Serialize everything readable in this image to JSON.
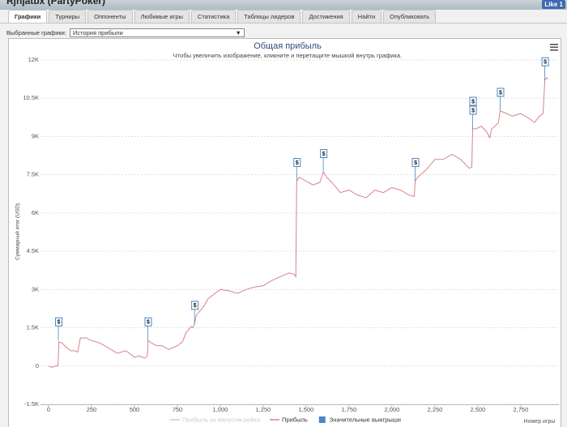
{
  "header": {
    "title": "Rjhjatbx (PartyPoker)",
    "like": "Like 1"
  },
  "tabs": [
    "Графики",
    "Турниры",
    "Оппоненты",
    "Любимые игры",
    "Статистика",
    "Таблицы лидеров",
    "Достижения",
    "Найти",
    "Опубликовать"
  ],
  "selector": {
    "label": "Выбранные графики:",
    "value": "История прибыли",
    "arrow": "▼"
  },
  "chart_data": {
    "type": "line",
    "title": "Общая прибыль",
    "subtitle": "Чтобы увеличить изображение, кликните и перетащите мышкой внутрь графика.",
    "y_label": "Суммарный итог (USD)",
    "x_label": "Номер игры",
    "grid": true,
    "ylim": [
      -1500,
      12000
    ],
    "yticks": [
      {
        "value": -1500,
        "label": "-1.5K"
      },
      0,
      {
        "value": 1500,
        "label": "1.5K"
      },
      {
        "value": 3000,
        "label": "3K"
      },
      {
        "value": 4500,
        "label": "4.5K"
      },
      {
        "value": 6000,
        "label": "6K"
      },
      {
        "value": 7500,
        "label": "7.5K"
      },
      {
        "value": 9000,
        "label": "9K"
      },
      {
        "value": 10500,
        "label": "10.5K"
      },
      {
        "value": 12000,
        "label": "12K"
      }
    ],
    "xlim": [
      -47,
      2925
    ],
    "xticks": [
      0,
      250,
      500,
      750,
      {
        "value": 1000,
        "label": "1,000"
      },
      {
        "value": 1250,
        "label": "1,250"
      },
      {
        "value": 1500,
        "label": "1,500"
      },
      {
        "value": 1750,
        "label": "1,750"
      },
      {
        "value": 2000,
        "label": "2,000"
      },
      {
        "value": 2250,
        "label": "2,250"
      },
      {
        "value": 2500,
        "label": "2,500"
      },
      {
        "value": 2750,
        "label": "2,750"
      }
    ],
    "series": [
      {
        "name": "Прибыль за минусом рейка",
        "color": "#cccccc",
        "visible": false
      },
      {
        "name": "Прибыль",
        "color": "#d9828a",
        "visible": true,
        "x": [
          0,
          20,
          40,
          55,
          60,
          80,
          100,
          130,
          150,
          170,
          185,
          220,
          250,
          300,
          350,
          400,
          450,
          500,
          530,
          560,
          575,
          580,
          600,
          630,
          660,
          700,
          750,
          780,
          800,
          830,
          840,
          850,
          860,
          880,
          900,
          930,
          960,
          1000,
          1050,
          1100,
          1150,
          1200,
          1250,
          1300,
          1350,
          1400,
          1430,
          1440,
          1445,
          1460,
          1500,
          1540,
          1580,
          1600,
          1620,
          1650,
          1700,
          1750,
          1800,
          1850,
          1900,
          1950,
          2000,
          2050,
          2100,
          2130,
          2135,
          2150,
          2200,
          2250,
          2300,
          2350,
          2400,
          2430,
          2450,
          2465,
          2470,
          2490,
          2520,
          2550,
          2570,
          2580,
          2600,
          2620,
          2630,
          2650,
          2700,
          2750,
          2800,
          2830,
          2860,
          2880,
          2890,
          2900,
          2910
        ],
        "values": [
          0,
          -50,
          0,
          0,
          950,
          900,
          750,
          600,
          600,
          550,
          1100,
          1100,
          1000,
          900,
          700,
          500,
          600,
          350,
          400,
          300,
          400,
          1000,
          900,
          800,
          800,
          650,
          800,
          950,
          1300,
          1550,
          1500,
          1650,
          2000,
          2150,
          2300,
          2650,
          2800,
          3000,
          2950,
          2850,
          3000,
          3100,
          3150,
          3350,
          3500,
          3650,
          3600,
          3500,
          7250,
          7400,
          7250,
          7100,
          7200,
          7600,
          7400,
          7200,
          6800,
          6900,
          6700,
          6600,
          6900,
          6800,
          7000,
          6900,
          6700,
          6650,
          7250,
          7400,
          7700,
          8100,
          8100,
          8300,
          8100,
          7900,
          7750,
          7800,
          9300,
          9300,
          9400,
          9200,
          8950,
          9300,
          9400,
          9550,
          10000,
          9950,
          9800,
          9900,
          9700,
          9550,
          9800,
          9900,
          11200,
          11300,
          11250
        ]
      },
      {
        "name": "Значительные выигрыши",
        "color": "#4a86c8",
        "visible": true,
        "flag_label": "$",
        "x": [
          57,
          578,
          850,
          1445,
          1600,
          2135,
          2470,
          2470,
          2630,
          2890
        ],
        "values": [
          1000,
          1000,
          1650,
          7250,
          7600,
          7250,
          9300,
          9300,
          10000,
          11200
        ]
      }
    ]
  }
}
